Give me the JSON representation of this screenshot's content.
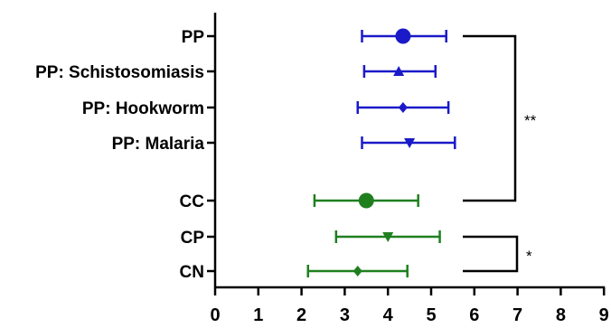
{
  "chart_data": {
    "type": "scatter",
    "subtype": "forest-plot-mean-with-error-bars",
    "xlim": [
      0,
      9
    ],
    "xticks": [
      "0",
      "1",
      "2",
      "3",
      "4",
      "5",
      "6",
      "7",
      "8",
      "9"
    ],
    "grid": false,
    "rows": [
      {
        "label": "PP",
        "mean": 4.35,
        "low": 3.4,
        "high": 5.35,
        "marker": "circle-large",
        "color": "#1a1ac8"
      },
      {
        "label": "PP: Schistosomiasis",
        "mean": 4.25,
        "low": 3.45,
        "high": 5.1,
        "marker": "triangle-up",
        "color": "#1a1ac8"
      },
      {
        "label": "PP: Hookworm",
        "mean": 4.35,
        "low": 3.3,
        "high": 5.4,
        "marker": "diamond",
        "color": "#1a1ac8"
      },
      {
        "label": "PP: Malaria",
        "mean": 4.5,
        "low": 3.4,
        "high": 5.55,
        "marker": "triangle-down",
        "color": "#1a1ac8"
      },
      {
        "label": "CC",
        "mean": 3.5,
        "low": 2.3,
        "high": 4.7,
        "marker": "circle-large",
        "color": "#1f7f1f"
      },
      {
        "label": "CP",
        "mean": 4.0,
        "low": 2.8,
        "high": 5.2,
        "marker": "triangle-down",
        "color": "#1f7f1f"
      },
      {
        "label": "CN",
        "mean": 3.3,
        "low": 2.15,
        "high": 4.45,
        "marker": "diamond",
        "color": "#1f7f1f"
      }
    ],
    "significance": [
      {
        "from": "PP",
        "to": "CC",
        "label": "**"
      },
      {
        "from": "CP",
        "to": "CN",
        "label": "*"
      }
    ]
  }
}
